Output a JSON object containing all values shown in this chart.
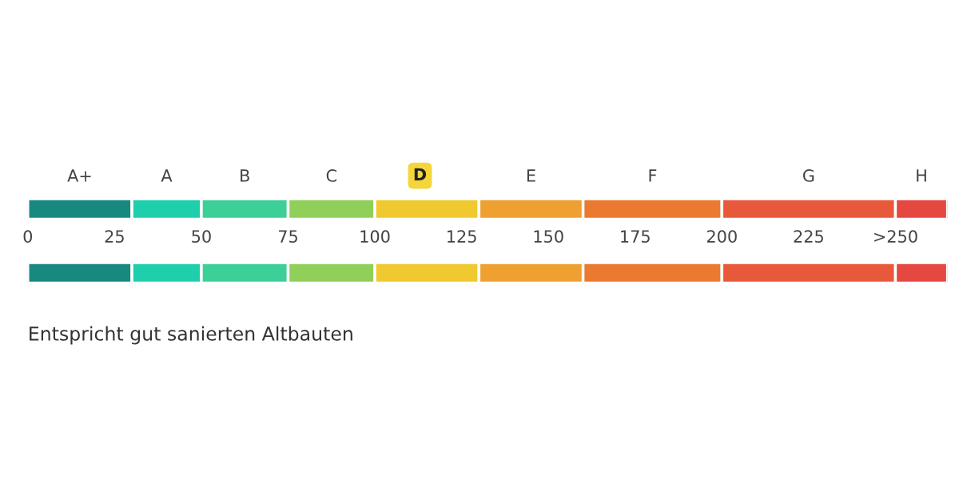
{
  "chart_data": {
    "type": "bar",
    "orientation": "horizontal",
    "stacked": true,
    "categories": [
      null,
      null
    ],
    "series": [
      {
        "name": "A+",
        "color": "#17897f",
        "values": [
          30,
          30
        ]
      },
      {
        "name": "A",
        "color": "#1fcfac",
        "values": [
          20,
          20
        ]
      },
      {
        "name": "B",
        "color": "#3ccf98",
        "values": [
          25,
          25
        ]
      },
      {
        "name": "C",
        "color": "#8fcf5a",
        "values": [
          25,
          25
        ]
      },
      {
        "color": "#f0c830",
        "values": [
          30,
          30
        ]
      },
      {
        "name": "E",
        "color": "#eea030",
        "values": [
          30,
          30
        ]
      },
      {
        "name": "F",
        "color": "#ea7a30",
        "values": [
          40,
          40
        ]
      },
      {
        "name": "G",
        "color": "#e8583a",
        "values": [
          50,
          50
        ]
      },
      {
        "name": "H",
        "color": "#e44840",
        "values": [
          15,
          15
        ]
      }
    ],
    "xlim": [
      0,
      265
    ],
    "xticks": [
      0,
      25,
      50,
      75,
      100,
      125,
      150,
      175,
      200,
      225,
      {
        "value": 250,
        "label": ">250"
      }
    ],
    "annotations": [
      {
        "text": "D",
        "x": 113
      },
      "Entspricht gut sanierten Altbauten"
    ],
    "grid": false,
    "legend": false
  }
}
